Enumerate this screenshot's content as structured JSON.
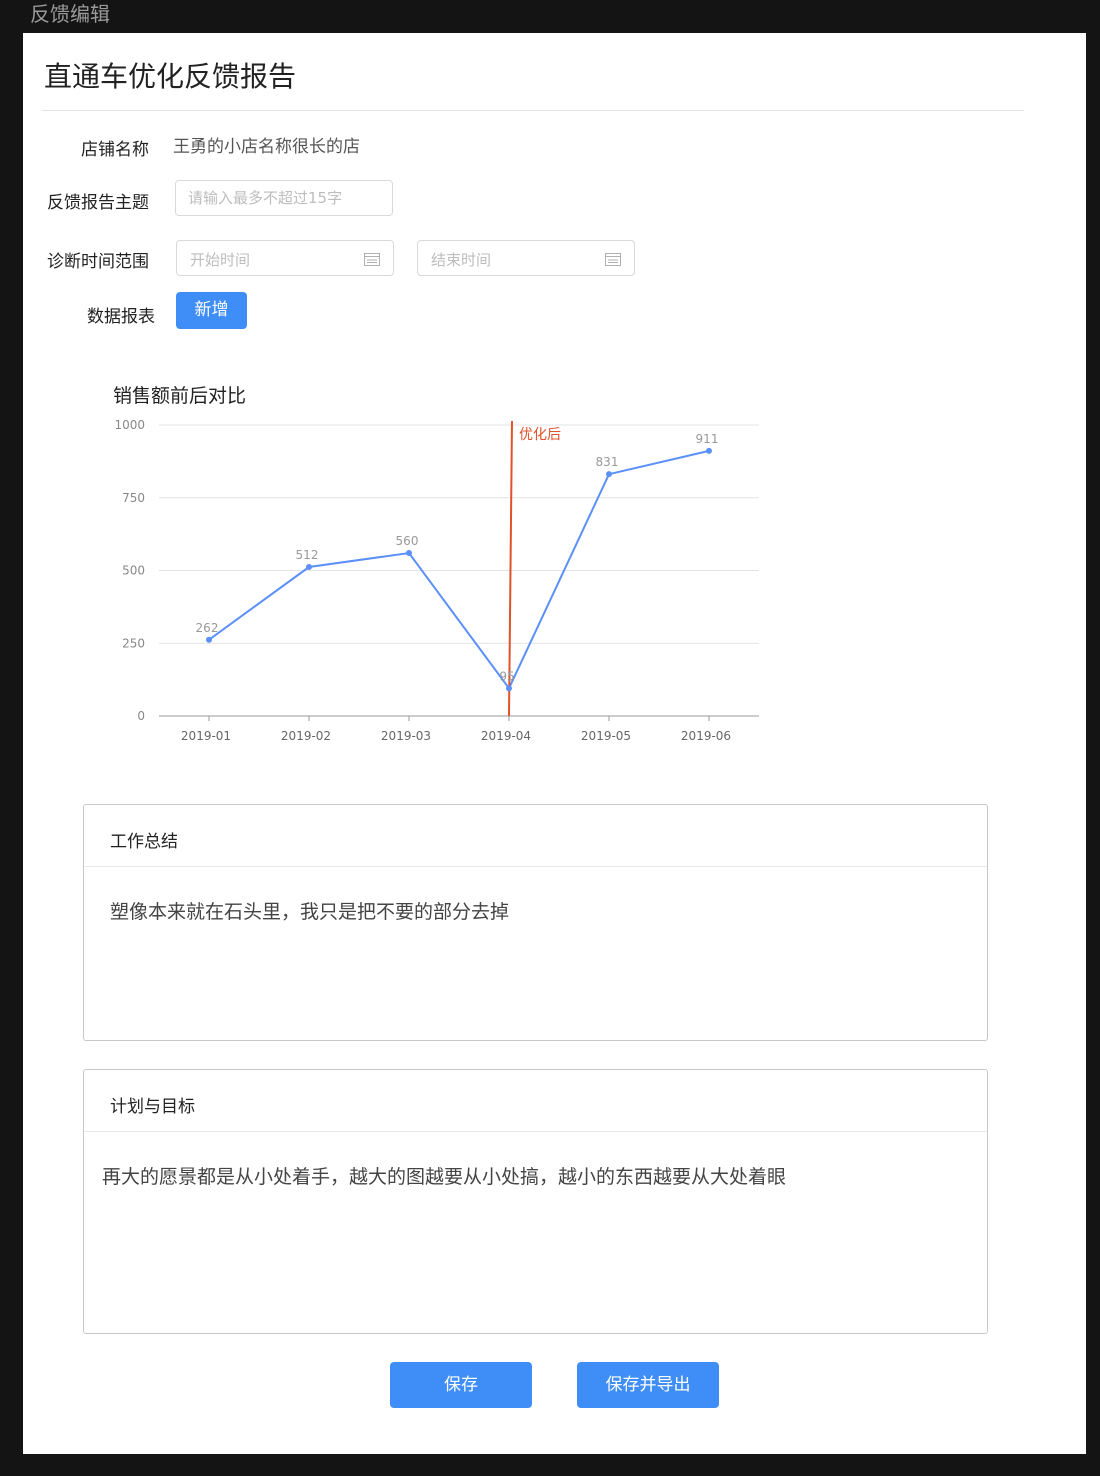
{
  "window": {
    "title": "反馈编辑"
  },
  "report": {
    "title": "直通车优化反馈报告"
  },
  "form": {
    "shop_label": "店铺名称",
    "shop_value": "王勇的小店名称很长的店",
    "topic_label": "反馈报告主题",
    "topic_placeholder": "请输入最多不超过15字",
    "range_label": "诊断时间范围",
    "start_placeholder": "开始时间",
    "end_placeholder": "结束时间",
    "table_label": "数据报表",
    "add_button": "新增"
  },
  "chart_data": {
    "type": "line",
    "title": "销售额前后对比",
    "categories": [
      "2019-01",
      "2019-02",
      "2019-03",
      "2019-04",
      "2019-05",
      "2019-06"
    ],
    "values": [
      262,
      512,
      560,
      95,
      831,
      911
    ],
    "value_labels": [
      "262",
      "512",
      "560",
      "95",
      "831",
      "911"
    ],
    "ylim": [
      0,
      1000
    ],
    "yticks": [
      "0",
      "250",
      "500",
      "750",
      "1000"
    ],
    "grid": true,
    "line_color": "#5b8ff9",
    "marker": {
      "category": "2019-04",
      "label": "优化后",
      "color": "#e0522a"
    }
  },
  "summary": {
    "title": "工作总结",
    "content": "塑像本来就在石头里，我只是把不要的部分去掉"
  },
  "plan": {
    "title": "计划与目标",
    "content": "再大的愿景都是从小处着手，越大的图越要从小处搞，越小的东西越要从大处着眼"
  },
  "actions": {
    "save": "保存",
    "save_export": "保存并导出"
  }
}
